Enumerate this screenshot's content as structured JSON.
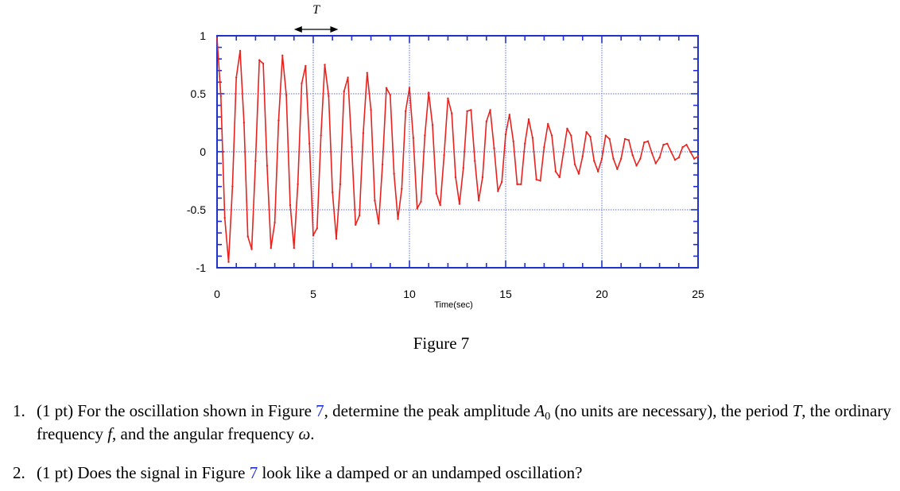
{
  "chart_data": {
    "type": "line",
    "title": "",
    "xlabel": "Time(sec)",
    "ylabel": "",
    "xlim": [
      0,
      25
    ],
    "ylim": [
      -1,
      1
    ],
    "xticks": [
      "0",
      "5",
      "10",
      "15",
      "20",
      "25"
    ],
    "yticks": [
      "1",
      "0.5",
      "0",
      "-0.5",
      "-1"
    ],
    "grid": true,
    "line_color": "#e8231f",
    "frame_color": "#1f33cc",
    "grid_color": "#5a6ee0",
    "series": [
      {
        "name": "",
        "x": [
          0.0,
          0.2,
          0.4,
          0.6,
          0.8,
          1.0,
          1.2,
          1.4,
          1.6,
          1.8,
          2.0,
          2.2,
          2.4,
          2.6,
          2.8,
          3.0,
          3.2,
          3.4,
          3.6,
          3.8,
          4.0,
          4.2,
          4.4,
          4.6,
          4.8,
          5.0,
          5.2,
          5.4,
          5.6,
          5.8,
          6.0,
          6.2,
          6.4,
          6.6,
          6.8,
          7.0,
          7.2,
          7.4,
          7.6,
          7.8,
          8.0,
          8.2,
          8.4,
          8.6,
          8.8,
          9.0,
          9.2,
          9.4,
          9.6,
          9.8,
          10.0,
          10.2,
          10.4,
          10.6,
          10.8,
          11.0,
          11.2,
          11.4,
          11.6,
          11.8,
          12.0,
          12.2,
          12.4,
          12.6,
          12.8,
          13.0,
          13.2,
          13.4,
          13.6,
          13.8,
          14.0,
          14.2,
          14.4,
          14.6,
          14.8,
          15.0,
          15.2,
          15.4,
          15.6,
          15.8,
          16.0,
          16.2,
          16.4,
          16.6,
          16.8,
          17.0,
          17.2,
          17.4,
          17.6,
          17.8,
          18.0,
          18.2,
          18.4,
          18.6,
          18.8,
          19.0,
          19.2,
          19.4,
          19.6,
          19.8,
          20.0,
          20.2,
          20.4,
          20.6,
          20.8,
          21.0,
          21.2,
          21.4,
          21.6,
          21.8,
          22.0,
          22.2,
          22.4,
          22.6,
          22.8,
          23.0,
          23.2,
          23.4,
          23.6,
          23.8,
          24.0,
          24.2,
          24.4,
          24.6,
          24.8,
          25.0
        ],
        "y": [
          0.98,
          0.48,
          -0.57,
          -0.95,
          -0.3,
          0.64,
          0.87,
          0.25,
          -0.73,
          -0.84,
          -0.08,
          0.79,
          0.76,
          -0.12,
          -0.83,
          -0.61,
          0.27,
          0.83,
          0.49,
          -0.46,
          -0.83,
          -0.28,
          0.59,
          0.74,
          0.07,
          -0.72,
          -0.66,
          0.14,
          0.75,
          0.48,
          -0.35,
          -0.75,
          -0.28,
          0.52,
          0.64,
          0.04,
          -0.63,
          -0.55,
          0.16,
          0.68,
          0.36,
          -0.42,
          -0.62,
          -0.11,
          0.55,
          0.49,
          -0.19,
          -0.58,
          -0.32,
          0.35,
          0.55,
          0.12,
          -0.49,
          -0.43,
          0.14,
          0.51,
          0.23,
          -0.36,
          -0.46,
          -0.03,
          0.46,
          0.33,
          -0.22,
          -0.45,
          -0.14,
          0.35,
          0.36,
          -0.08,
          -0.42,
          -0.22,
          0.26,
          0.36,
          0.03,
          -0.34,
          -0.26,
          0.15,
          0.32,
          0.09,
          -0.28,
          -0.28,
          0.07,
          0.28,
          0.12,
          -0.24,
          -0.25,
          0.04,
          0.24,
          0.14,
          -0.17,
          -0.22,
          -0.01,
          0.2,
          0.14,
          -0.11,
          -0.19,
          -0.04,
          0.17,
          0.13,
          -0.08,
          -0.17,
          -0.06,
          0.14,
          0.11,
          -0.06,
          -0.15,
          -0.06,
          0.11,
          0.1,
          -0.03,
          -0.12,
          -0.06,
          0.08,
          0.09,
          -0.01,
          -0.1,
          -0.05,
          0.06,
          0.07,
          0.0,
          -0.07,
          -0.05,
          0.04,
          0.06,
          0.0,
          -0.06,
          -0.04
        ]
      }
    ]
  },
  "period_marker": {
    "label": "T",
    "x_start": 4.0,
    "x_end": 6.3
  },
  "figure_caption": "Figure 7",
  "questions": [
    {
      "number": "1.",
      "text_1": "(1 pt) For the oscillation shown in Figure ",
      "ref_1": "7",
      "text_2": ", determine the peak amplitude ",
      "sym_amp": "A",
      "sub_amp": "0",
      "text_3": " (no units are necessary), the period ",
      "sym_period": "T",
      "text_4": ", the ordinary frequency ",
      "sym_freq": "f",
      "text_5": ", and the angular frequency ",
      "sym_ang": "ω",
      "text_6": "."
    },
    {
      "number": "2.",
      "text_1": "(1 pt) Does the signal in Figure ",
      "ref_1": "7",
      "text_2": " look like a damped or an undamped oscillation?"
    }
  ]
}
